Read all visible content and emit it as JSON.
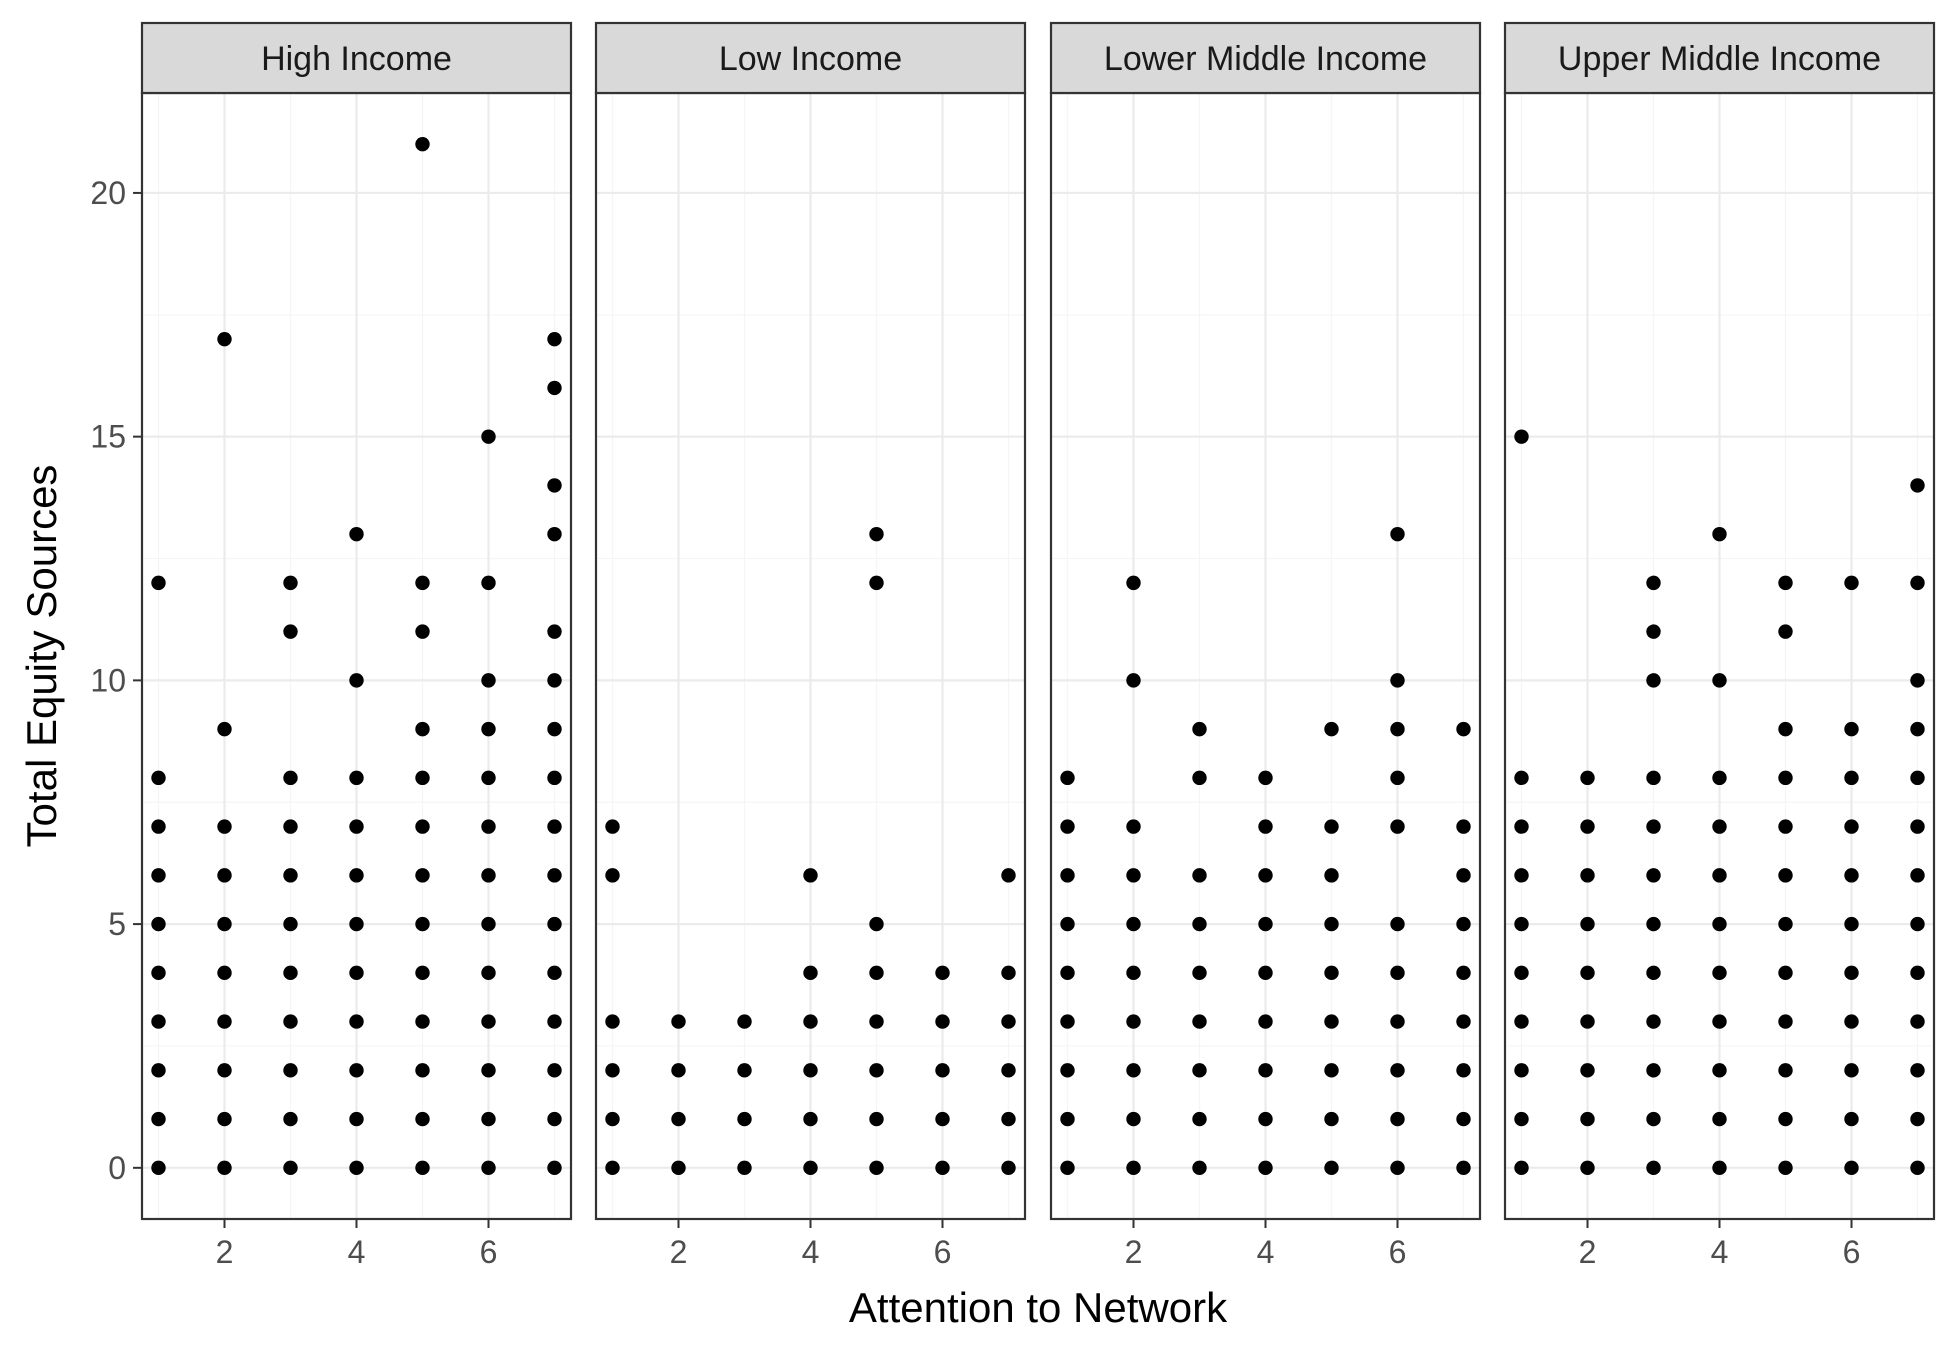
{
  "chart_data": {
    "type": "scatter",
    "facet_layout": "1 row x 4 columns",
    "xlabel": "Attention to Network",
    "ylabel": "Total Equity Sources",
    "xlim": [
      0.75,
      7.25
    ],
    "ylim": [
      -1.05,
      22.05
    ],
    "x_ticks": [
      2,
      4,
      6
    ],
    "y_ticks": [
      0,
      5,
      10,
      15,
      20
    ],
    "grid": true,
    "legend": "none",
    "colors": {
      "point": "#000000",
      "strip_fill": "#d9d9d9",
      "grid_major": "#ebebeb",
      "grid_minor": "#f5f5f5",
      "panel_border": "#333333",
      "tick_label": "#4d4d4d"
    },
    "panels": [
      {
        "label": "High Income",
        "points": [
          {
            "x": 1,
            "y": [
              0,
              1,
              2,
              3,
              4,
              5,
              6,
              7,
              8,
              12
            ]
          },
          {
            "x": 2,
            "y": [
              0,
              1,
              2,
              3,
              4,
              5,
              6,
              7,
              9,
              17
            ]
          },
          {
            "x": 3,
            "y": [
              0,
              1,
              2,
              3,
              4,
              5,
              6,
              7,
              8,
              11,
              12
            ]
          },
          {
            "x": 4,
            "y": [
              0,
              1,
              2,
              3,
              4,
              5,
              6,
              7,
              8,
              10,
              13
            ]
          },
          {
            "x": 5,
            "y": [
              0,
              1,
              2,
              3,
              4,
              5,
              6,
              7,
              8,
              9,
              11,
              12,
              21
            ]
          },
          {
            "x": 6,
            "y": [
              0,
              1,
              2,
              3,
              4,
              5,
              6,
              7,
              8,
              9,
              10,
              12,
              15
            ]
          },
          {
            "x": 7,
            "y": [
              0,
              1,
              2,
              3,
              4,
              5,
              6,
              7,
              8,
              9,
              10,
              11,
              13,
              14,
              16,
              17
            ]
          }
        ]
      },
      {
        "label": "Low Income",
        "points": [
          {
            "x": 1,
            "y": [
              0,
              1,
              2,
              3,
              6,
              7
            ]
          },
          {
            "x": 2,
            "y": [
              0,
              1,
              2,
              3
            ]
          },
          {
            "x": 3,
            "y": [
              0,
              1,
              2,
              3
            ]
          },
          {
            "x": 4,
            "y": [
              0,
              1,
              2,
              3,
              4,
              6
            ]
          },
          {
            "x": 5,
            "y": [
              0,
              1,
              2,
              3,
              4,
              5,
              12,
              13
            ]
          },
          {
            "x": 6,
            "y": [
              0,
              1,
              2,
              3,
              4
            ]
          },
          {
            "x": 7,
            "y": [
              0,
              1,
              2,
              3,
              4,
              6
            ]
          }
        ]
      },
      {
        "label": "Lower Middle Income",
        "points": [
          {
            "x": 1,
            "y": [
              0,
              1,
              2,
              3,
              4,
              5,
              6,
              7,
              8
            ]
          },
          {
            "x": 2,
            "y": [
              0,
              1,
              2,
              3,
              4,
              5,
              6,
              7,
              10,
              12
            ]
          },
          {
            "x": 3,
            "y": [
              0,
              1,
              2,
              3,
              4,
              5,
              6,
              8,
              9
            ]
          },
          {
            "x": 4,
            "y": [
              0,
              1,
              2,
              3,
              4,
              5,
              6,
              7,
              8
            ]
          },
          {
            "x": 5,
            "y": [
              0,
              1,
              2,
              3,
              4,
              5,
              6,
              7,
              9
            ]
          },
          {
            "x": 6,
            "y": [
              0,
              1,
              2,
              3,
              4,
              5,
              7,
              8,
              9,
              10,
              13
            ]
          },
          {
            "x": 7,
            "y": [
              0,
              1,
              2,
              3,
              4,
              5,
              6,
              7,
              9
            ]
          }
        ]
      },
      {
        "label": "Upper Middle Income",
        "points": [
          {
            "x": 1,
            "y": [
              0,
              1,
              2,
              3,
              4,
              5,
              6,
              7,
              8,
              15
            ]
          },
          {
            "x": 2,
            "y": [
              0,
              1,
              2,
              3,
              4,
              5,
              6,
              7,
              8
            ]
          },
          {
            "x": 3,
            "y": [
              0,
              1,
              2,
              3,
              4,
              5,
              6,
              7,
              8,
              10,
              11,
              12
            ]
          },
          {
            "x": 4,
            "y": [
              0,
              1,
              2,
              3,
              4,
              5,
              6,
              7,
              8,
              10,
              13
            ]
          },
          {
            "x": 5,
            "y": [
              0,
              1,
              2,
              3,
              4,
              5,
              6,
              7,
              8,
              9,
              11,
              12
            ]
          },
          {
            "x": 6,
            "y": [
              0,
              1,
              2,
              3,
              4,
              5,
              6,
              7,
              8,
              9,
              12
            ]
          },
          {
            "x": 7,
            "y": [
              0,
              1,
              2,
              3,
              4,
              5,
              6,
              7,
              8,
              9,
              10,
              12,
              14
            ]
          }
        ]
      }
    ]
  }
}
